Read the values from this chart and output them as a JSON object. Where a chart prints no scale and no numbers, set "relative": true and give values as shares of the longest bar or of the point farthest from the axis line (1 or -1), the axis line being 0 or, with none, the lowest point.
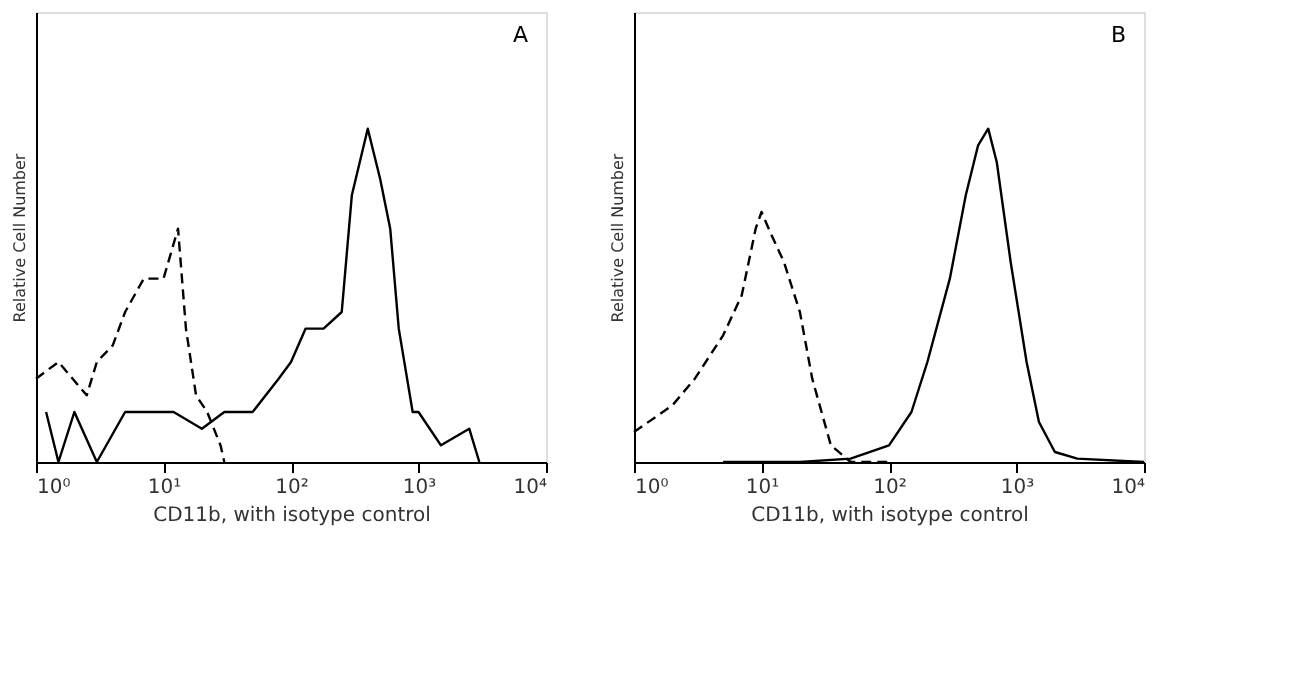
{
  "chart_data": [
    {
      "type": "line",
      "relative": true,
      "xlabel": "CD11b, with isotype control",
      "ylabel": "Relative Cell Number",
      "annotations": [
        "A"
      ],
      "log": "x",
      "grid": false,
      "marker": "none",
      "xlim": [
        1,
        10000
      ],
      "xticks": [
        {
          "value": 1,
          "label": "10⁰"
        },
        {
          "value": 10,
          "label": "10¹"
        },
        {
          "value": 100,
          "label": "10²"
        },
        {
          "value": 1000,
          "label": "10³"
        },
        {
          "value": 10000,
          "label": "10⁴"
        }
      ],
      "series": [
        {
          "color": "#000000",
          "line_style": "solid",
          "x": [
            1.2,
            1.5,
            2,
            3,
            5,
            8,
            12,
            20,
            30,
            50,
            80,
            100,
            130,
            180,
            250,
            300,
            400,
            500,
            600,
            700,
            900,
            1000,
            1500,
            2500,
            3000
          ],
          "values": [
            0.15,
            0,
            0.15,
            0,
            0.15,
            0.15,
            0.15,
            0.1,
            0.15,
            0.15,
            0.25,
            0.3,
            0.4,
            0.4,
            0.45,
            0.8,
            1,
            0.85,
            0.7,
            0.4,
            0.15,
            0.15,
            0.05,
            0.1,
            0
          ]
        },
        {
          "color": "#000000",
          "line_style": "dashed",
          "x": [
            1,
            1.5,
            2.5,
            3,
            4,
            5,
            7,
            10,
            13,
            15,
            18,
            22,
            28,
            30
          ],
          "values": [
            0.25,
            0.3,
            0.2,
            0.3,
            0.35,
            0.45,
            0.55,
            0.55,
            0.7,
            0.4,
            0.2,
            0.15,
            0.05,
            0
          ]
        }
      ]
    },
    {
      "type": "line",
      "relative": true,
      "xlabel": "CD11b, with isotype control",
      "ylabel": "Relative Cell Number",
      "annotations": [
        "B"
      ],
      "log": "x",
      "grid": false,
      "marker": "none",
      "xlim": [
        1,
        10000
      ],
      "xticks": [
        {
          "value": 1,
          "label": "10⁰"
        },
        {
          "value": 10,
          "label": "10¹"
        },
        {
          "value": 100,
          "label": "10²"
        },
        {
          "value": 1000,
          "label": "10³"
        },
        {
          "value": 10000,
          "label": "10⁴"
        }
      ],
      "series": [
        {
          "color": "#000000",
          "line_style": "solid",
          "x": [
            5,
            20,
            50,
            100,
            150,
            200,
            300,
            400,
            500,
            600,
            700,
            900,
            1200,
            1500,
            2000,
            3000,
            10000
          ],
          "values": [
            0,
            0,
            0.01,
            0.05,
            0.15,
            0.3,
            0.55,
            0.8,
            0.95,
            1,
            0.9,
            0.6,
            0.3,
            0.12,
            0.03,
            0.01,
            0
          ]
        },
        {
          "color": "#000000",
          "line_style": "dashed",
          "x": [
            1,
            2,
            3,
            5,
            7,
            9,
            10,
            12,
            15,
            20,
            25,
            35,
            50,
            100
          ],
          "values": [
            0.09,
            0.17,
            0.25,
            0.38,
            0.5,
            0.7,
            0.75,
            0.68,
            0.6,
            0.45,
            0.25,
            0.05,
            0,
            0
          ]
        }
      ]
    }
  ]
}
